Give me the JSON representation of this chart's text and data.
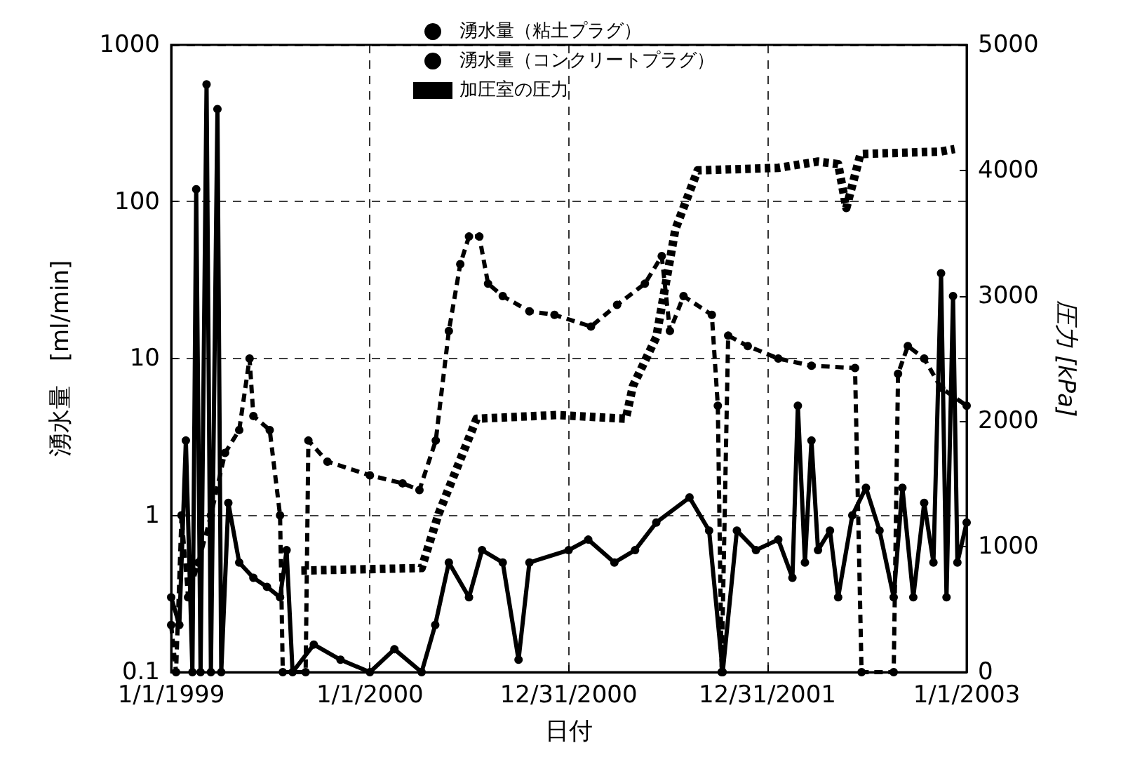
{
  "chart_data": {
    "type": "line",
    "xlabel": "日付",
    "ylabel": "湧水量　[ml/min]",
    "y2label": "圧力 [kPa]",
    "log": "y",
    "grid": true,
    "legend": "top",
    "xlim": [
      "1999-01-01",
      "2003-01-01"
    ],
    "xticks": [
      {
        "value": "1999-01-01",
        "label": "1/1/1999"
      },
      {
        "value": "2000-01-01",
        "label": "1/1/2000"
      },
      {
        "value": "2000-12-31",
        "label": "12/31/2000"
      },
      {
        "value": "2001-12-31",
        "label": "12/31/2001"
      },
      {
        "value": "2003-01-01",
        "label": "1/1/2003"
      }
    ],
    "ylim": [
      0.1,
      1000
    ],
    "yticks": [
      0.1,
      1,
      10,
      100,
      1000
    ],
    "y2lim": [
      0,
      5000
    ],
    "y2ticks": [
      0,
      1000,
      2000,
      3000,
      4000,
      5000
    ],
    "series": [
      {
        "name": "湧水量（粘土プラグ）",
        "color": "#000000",
        "line_style": "solid",
        "marker": "circle",
        "x": [
          "1999-01-01",
          "1999-01-16",
          "1999-01-28",
          "1999-02-09",
          "1999-02-16",
          "1999-02-24",
          "1999-03-07",
          "1999-03-15",
          "1999-03-27",
          "1999-04-03",
          "1999-04-16",
          "1999-05-06",
          "1999-06-01",
          "1999-06-26",
          "1999-07-20",
          "1999-08-01",
          "1999-08-12",
          "1999-09-20",
          "1999-11-08",
          "2000-01-01",
          "2000-02-15",
          "2000-04-05",
          "2000-04-30",
          "2000-05-25",
          "2000-07-01",
          "2000-07-25",
          "2000-09-01",
          "2000-09-30",
          "2000-10-20",
          "2000-12-31",
          "2001-02-05",
          "2001-03-25",
          "2001-05-02",
          "2001-06-10",
          "2001-08-10",
          "2001-09-15",
          "2001-10-10",
          "2001-11-05",
          "2001-12-10",
          "2002-01-20",
          "2002-02-15",
          "2002-02-25",
          "2002-03-10",
          "2002-03-22",
          "2002-04-03",
          "2002-04-25",
          "2002-05-10",
          "2002-06-05",
          "2002-06-30",
          "2002-07-25",
          "2002-08-20",
          "2002-09-05",
          "2002-09-25",
          "2002-10-15",
          "2002-11-01",
          "2002-11-15",
          "2002-11-25",
          "2002-12-07",
          "2002-12-15",
          "2003-01-01"
        ],
        "values": [
          0.3,
          0.2,
          3,
          0.1,
          120,
          0.1,
          560,
          0.1,
          390,
          0.1,
          1.2,
          0.5,
          0.4,
          0.35,
          0.3,
          0.6,
          0.1,
          0.15,
          0.12,
          0.1,
          0.14,
          0.1,
          0.2,
          0.5,
          0.3,
          0.6,
          0.5,
          0.12,
          0.5,
          0.6,
          0.7,
          0.5,
          0.6,
          0.9,
          1.3,
          0.8,
          0.1,
          0.8,
          0.6,
          0.7,
          0.4,
          5,
          0.5,
          3,
          0.6,
          0.8,
          0.3,
          1,
          1.5,
          0.8,
          0.3,
          1.5,
          0.3,
          1.2,
          0.5,
          35,
          0.3,
          25,
          0.5,
          0.9
        ]
      },
      {
        "name": "湧水量（コンクリートプラグ）",
        "color": "#000000",
        "line_style": "dashed",
        "marker": "circle",
        "x": [
          "1999-01-01",
          "1999-01-10",
          "1999-01-20",
          "1999-02-01",
          "1999-02-20",
          "1999-03-15",
          "1999-04-10",
          "1999-05-06",
          "1999-05-25",
          "1999-06-01",
          "1999-07-01",
          "1999-07-20",
          "1999-07-25",
          "1999-09-05",
          "1999-09-10",
          "1999-10-15",
          "2000-01-01",
          "2000-03-01",
          "2000-04-01",
          "2000-05-01",
          "2000-05-25",
          "2000-06-15",
          "2000-07-01",
          "2000-07-20",
          "2000-08-05",
          "2000-09-01",
          "2000-10-20",
          "2000-12-05",
          "2001-02-10",
          "2001-03-30",
          "2001-05-20",
          "2001-06-20",
          "2001-07-05",
          "2001-07-30",
          "2001-09-20",
          "2001-10-01",
          "2001-10-08",
          "2001-10-20",
          "2001-11-25",
          "2002-01-20",
          "2002-03-22",
          "2002-06-10",
          "2002-06-22",
          "2002-08-20",
          "2002-08-28",
          "2002-09-15",
          "2002-10-15",
          "2002-11-15",
          "2003-01-01"
        ],
        "values": [
          0.2,
          0.1,
          1,
          0.3,
          0.5,
          1,
          2.5,
          3.5,
          10,
          4.3,
          3.5,
          1,
          0.1,
          0.1,
          3,
          2.2,
          1.8,
          1.6,
          1.45,
          3,
          15,
          40,
          60,
          60,
          30,
          25,
          20,
          19,
          16,
          22,
          30,
          45,
          15,
          25,
          19,
          5,
          0.1,
          14,
          12,
          10,
          9,
          8.7,
          0.1,
          0.1,
          8,
          12,
          10,
          6.5,
          5
        ]
      },
      {
        "name": "加圧室の圧力",
        "color": "#000000",
        "line_style": "dashed",
        "marker": "none",
        "axis": "y2",
        "x": [
          "1999-08-28",
          "2000-04-05",
          "2000-05-06",
          "2000-07-15",
          "2000-12-10",
          "2001-04-15",
          "2001-04-28",
          "2001-06-10",
          "2001-07-15",
          "2001-08-25",
          "2002-01-20",
          "2002-04-03",
          "2002-05-10",
          "2002-05-25",
          "2002-06-20",
          "2002-11-15",
          "2002-12-10"
        ],
        "values": [
          810,
          830,
          1260,
          2020,
          2050,
          2020,
          2280,
          2670,
          3530,
          4000,
          4020,
          4070,
          4050,
          3700,
          4130,
          4150,
          4170
        ]
      }
    ]
  }
}
